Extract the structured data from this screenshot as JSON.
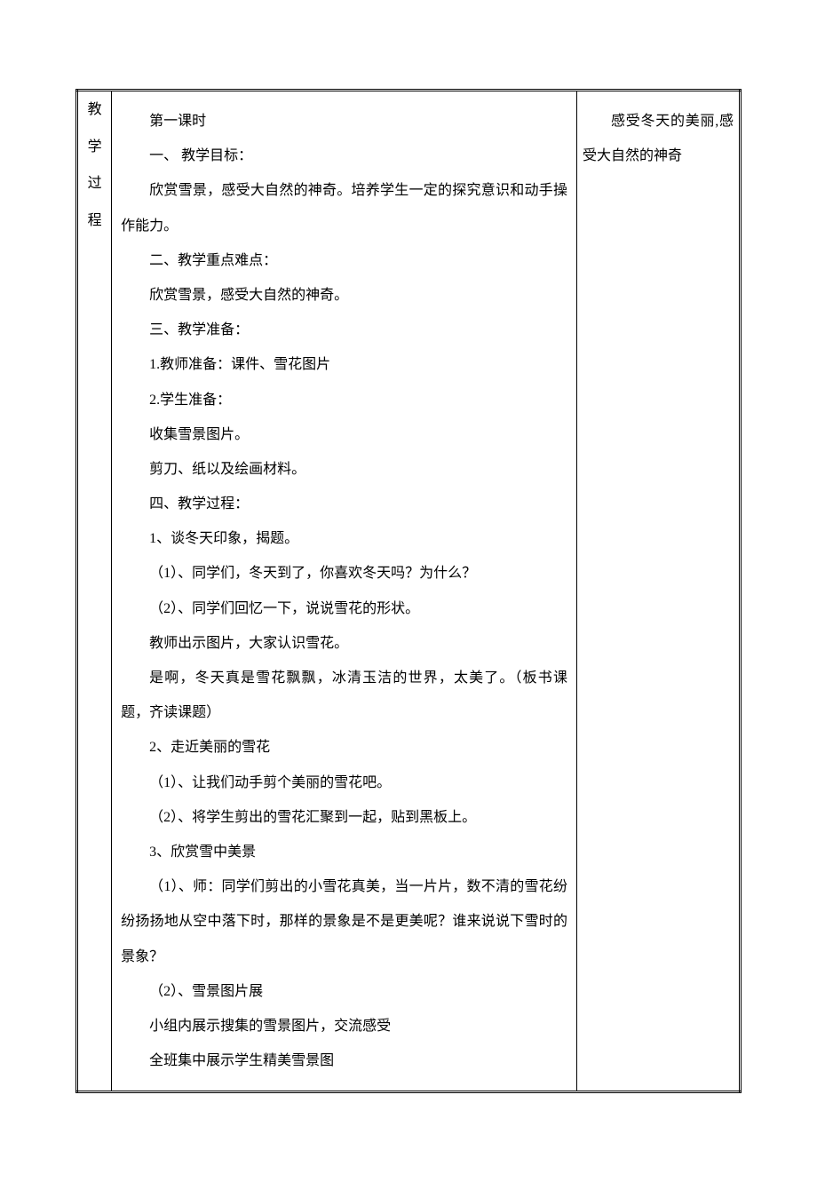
{
  "label": {
    "c1": "教",
    "c2": "学",
    "c3": "过",
    "c4": "程"
  },
  "content": {
    "p01": "第一课时",
    "p02": "一、 教学目标：",
    "p03": "欣赏雪景，感受大自然的神奇。培养学生一定的探究意识和动手操作能力。",
    "p04": "二、教学重点难点：",
    "p05": "欣赏雪景，感受大自然的神奇。",
    "p06": "三、教学准备：",
    "p07": "1.教师准备：课件、雪花图片",
    "p08": "2.学生准备：",
    "p09": "收集雪景图片。",
    "p10": "剪刀、纸以及绘画材料。",
    "p11": "四、教学过程：",
    "p12": "1、谈冬天印象，揭题。",
    "p13": "（1）、同学们，冬天到了，你喜欢冬天吗？为什么？",
    "p14": "（2）、同学们回忆一下，说说雪花的形状。",
    "p15": "教师出示图片，大家认识雪花。",
    "p16": "是啊，冬天真是雪花飘飘，冰清玉洁的世界，太美了。（板书课题，齐读课题）",
    "p17": "2、走近美丽的雪花",
    "p18": "（1）、让我们动手剪个美丽的雪花吧。",
    "p19": "（2）、将学生剪出的雪花汇聚到一起，贴到黑板上。",
    "p20": "3、欣赏雪中美景",
    "p21": "（1）、师：同学们剪出的小雪花真美，当一片片，数不清的雪花纷纷扬扬地从空中落下时，那样的景象是不是更美呢？谁来说说下雪时的景象？",
    "p22": "（2）、雪景图片展",
    "p23": "小组内展示搜集的雪景图片，交流感受",
    "p24": "全班集中展示学生精美雪景图"
  },
  "note": {
    "text": "感受冬天的美丽,感受大自然的神奇"
  }
}
